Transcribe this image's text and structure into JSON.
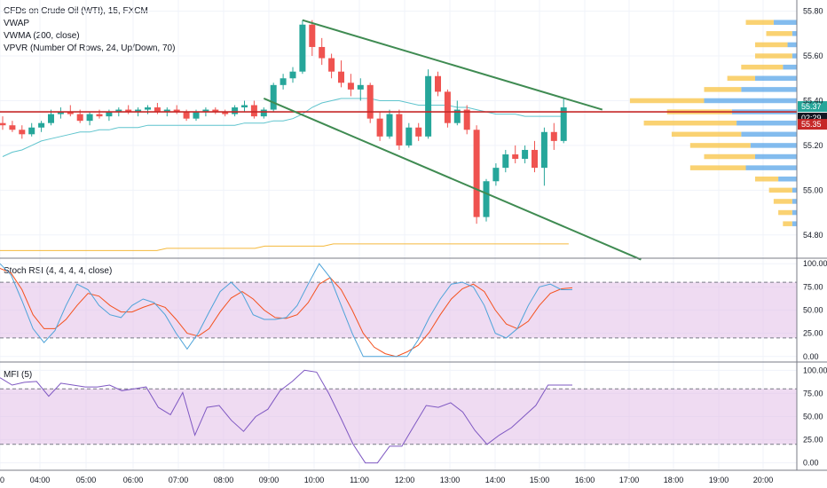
{
  "legend": {
    "main_title": "CFDs on Crude Oil (WTI), 15, FXCM",
    "vwap": "VWAP",
    "vwma": "VWMA (200, close)",
    "vpvr": "VPVR (Number Of Rows, 24, Up/Down, 70)",
    "stoch": "Stoch RSI (4, 4, 4, 4, close)",
    "mfi": "MFI (5)"
  },
  "colors": {
    "up": "#26a69a",
    "down": "#ef5350",
    "vwap": "#5fc4cd",
    "vwma": "#f5b93c",
    "trendline": "#3f8b52",
    "hline": "#c62828",
    "stoch_k": "#4ea3d9",
    "stoch_d": "#f4511e",
    "vp_up": "#5aa6e8",
    "vp_down": "#f9c74f"
  },
  "price_tags": {
    "last": "55.37",
    "countdown": "02:29",
    "level": "55.35"
  },
  "chart_data": [
    {
      "type": "candlestick",
      "name": "price",
      "x_labels": [
        "00",
        "04:00",
        "05:00",
        "06:00",
        "07:00",
        "08:00",
        "09:00",
        "10:00",
        "11:00",
        "12:00",
        "13:00",
        "14:00",
        "15:00",
        "16:00",
        "17:00",
        "18:00",
        "19:00",
        "20:00"
      ],
      "y_ticks": [
        54.8,
        55.0,
        55.2,
        55.4,
        55.6,
        55.8
      ],
      "y_tick_labels": [
        "54.80",
        "55.00",
        "55.20",
        "55.40",
        "55.60",
        "55.80"
      ],
      "ylim": [
        54.7,
        55.85
      ],
      "ohlc": [
        [
          55.3,
          55.33,
          55.27,
          55.29
        ],
        [
          55.29,
          55.31,
          55.26,
          55.27
        ],
        [
          55.27,
          55.29,
          55.23,
          55.25
        ],
        [
          55.25,
          55.3,
          55.24,
          55.28
        ],
        [
          55.28,
          55.31,
          55.26,
          55.3
        ],
        [
          55.3,
          55.36,
          55.29,
          55.34
        ],
        [
          55.34,
          55.37,
          55.32,
          55.35
        ],
        [
          55.35,
          55.38,
          55.33,
          55.34
        ],
        [
          55.34,
          55.36,
          55.3,
          55.31
        ],
        [
          55.31,
          55.35,
          55.29,
          55.34
        ],
        [
          55.34,
          55.36,
          55.32,
          55.33
        ],
        [
          55.33,
          55.36,
          55.31,
          55.35
        ],
        [
          55.35,
          55.37,
          55.33,
          55.36
        ],
        [
          55.36,
          55.38,
          55.34,
          55.35
        ],
        [
          55.35,
          55.37,
          55.33,
          55.36
        ],
        [
          55.36,
          55.38,
          55.34,
          55.37
        ],
        [
          55.37,
          55.39,
          55.34,
          55.35
        ],
        [
          55.35,
          55.37,
          55.33,
          55.36
        ],
        [
          55.36,
          55.38,
          55.34,
          55.35
        ],
        [
          55.35,
          55.36,
          55.31,
          55.32
        ],
        [
          55.32,
          55.36,
          55.31,
          55.35
        ],
        [
          55.35,
          55.37,
          55.33,
          55.36
        ],
        [
          55.36,
          55.37,
          55.34,
          55.35
        ],
        [
          55.35,
          55.36,
          55.33,
          55.34
        ],
        [
          55.34,
          55.38,
          55.33,
          55.37
        ],
        [
          55.37,
          55.4,
          55.35,
          55.38
        ],
        [
          55.38,
          55.4,
          55.32,
          55.33
        ],
        [
          55.33,
          55.37,
          55.32,
          55.36
        ],
        [
          55.36,
          55.48,
          55.35,
          55.47
        ],
        [
          55.47,
          55.52,
          55.45,
          55.5
        ],
        [
          55.5,
          55.55,
          55.48,
          55.53
        ],
        [
          55.53,
          55.76,
          55.52,
          55.74
        ],
        [
          55.74,
          55.76,
          55.6,
          55.64
        ],
        [
          55.64,
          55.68,
          55.56,
          55.59
        ],
        [
          55.59,
          55.61,
          55.5,
          55.53
        ],
        [
          55.53,
          55.58,
          55.46,
          55.48
        ],
        [
          55.48,
          55.52,
          55.42,
          55.45
        ],
        [
          55.45,
          55.5,
          55.4,
          55.47
        ],
        [
          55.47,
          55.48,
          55.3,
          55.32
        ],
        [
          55.32,
          55.35,
          55.22,
          55.24
        ],
        [
          55.24,
          55.36,
          55.23,
          55.34
        ],
        [
          55.34,
          55.36,
          55.18,
          55.2
        ],
        [
          55.2,
          55.3,
          55.19,
          55.28
        ],
        [
          55.28,
          55.3,
          55.22,
          55.24
        ],
        [
          55.24,
          55.54,
          55.23,
          55.51
        ],
        [
          55.51,
          55.53,
          55.42,
          55.44
        ],
        [
          55.44,
          55.45,
          55.28,
          55.3
        ],
        [
          55.3,
          55.4,
          55.29,
          55.36
        ],
        [
          55.36,
          55.38,
          55.25,
          55.27
        ],
        [
          55.27,
          55.29,
          54.85,
          54.88
        ],
        [
          54.88,
          55.05,
          54.86,
          55.04
        ],
        [
          55.04,
          55.12,
          55.02,
          55.1
        ],
        [
          55.1,
          55.18,
          55.08,
          55.16
        ],
        [
          55.16,
          55.2,
          55.12,
          55.14
        ],
        [
          55.14,
          55.2,
          55.12,
          55.18
        ],
        [
          55.18,
          55.22,
          55.08,
          55.1
        ],
        [
          55.1,
          55.28,
          55.02,
          55.26
        ],
        [
          55.26,
          55.3,
          55.18,
          55.22
        ],
        [
          55.22,
          55.41,
          55.21,
          55.37
        ]
      ],
      "vwap": [
        55.15,
        55.17,
        55.18,
        55.2,
        55.22,
        55.23,
        55.24,
        55.25,
        55.26,
        55.26,
        55.27,
        55.27,
        55.28,
        55.28,
        55.28,
        55.29,
        55.29,
        55.29,
        55.29,
        55.29,
        55.29,
        55.29,
        55.29,
        55.29,
        55.29,
        55.3,
        55.3,
        55.3,
        55.31,
        55.31,
        55.32,
        55.34,
        55.37,
        55.39,
        55.4,
        55.41,
        55.41,
        55.41,
        55.41,
        55.4,
        55.4,
        55.4,
        55.39,
        55.38,
        55.38,
        55.38,
        55.38,
        55.37,
        55.37,
        55.36,
        55.35,
        55.34,
        55.34,
        55.34,
        55.33,
        55.33,
        55.33,
        55.33,
        55.33
      ],
      "vwma": [
        54.73,
        54.73,
        54.73,
        54.73,
        54.73,
        54.73,
        54.73,
        54.73,
        54.73,
        54.73,
        54.73,
        54.73,
        54.73,
        54.73,
        54.73,
        54.73,
        54.73,
        54.74,
        54.74,
        54.74,
        54.74,
        54.74,
        54.74,
        54.74,
        54.74,
        54.74,
        54.74,
        54.75,
        54.75,
        54.75,
        54.75,
        54.75,
        54.75,
        54.75,
        54.76,
        54.76,
        54.76,
        54.76,
        54.76,
        54.76,
        54.76,
        54.76,
        54.76,
        54.76,
        54.76,
        54.76,
        54.76,
        54.76,
        54.76,
        54.76,
        54.76,
        54.76,
        54.76,
        54.76,
        54.76,
        54.76,
        54.76,
        54.76,
        54.76
      ],
      "trendlines": [
        {
          "points": [
            [
              31,
              55.76
            ],
            [
              62,
              55.36
            ]
          ]
        },
        {
          "points": [
            [
              27,
              55.41
            ],
            [
              66,
              54.69
            ]
          ]
        }
      ],
      "hlines": [
        55.35
      ],
      "volume_profile": [
        {
          "price": 55.75,
          "up": 0.3,
          "down": 0.25
        },
        {
          "price": 55.7,
          "up": 0.28,
          "down": 0.05
        },
        {
          "price": 55.65,
          "up": 0.35,
          "down": 0.1
        },
        {
          "price": 55.6,
          "up": 0.4,
          "down": 0.05
        },
        {
          "price": 55.55,
          "up": 0.45,
          "down": 0.15
        },
        {
          "price": 55.5,
          "up": 0.3,
          "down": 0.45
        },
        {
          "price": 55.45,
          "up": 0.4,
          "down": 0.6
        },
        {
          "price": 55.4,
          "up": 0.8,
          "down": 1.0
        },
        {
          "price": 55.35,
          "up": 0.7,
          "down": 0.7
        },
        {
          "price": 55.3,
          "up": 1.0,
          "down": 0.65
        },
        {
          "price": 55.25,
          "up": 0.75,
          "down": 0.6
        },
        {
          "price": 55.2,
          "up": 0.65,
          "down": 0.5
        },
        {
          "price": 55.15,
          "up": 0.55,
          "down": 0.45
        },
        {
          "price": 55.1,
          "up": 0.6,
          "down": 0.55
        },
        {
          "price": 55.05,
          "up": 0.25,
          "down": 0.2
        },
        {
          "price": 55.0,
          "up": 0.25,
          "down": 0.05
        },
        {
          "price": 54.95,
          "up": 0.2,
          "down": 0.05
        },
        {
          "price": 54.9,
          "up": 0.15,
          "down": 0.05
        },
        {
          "price": 54.85,
          "up": 0.1,
          "down": 0.05
        }
      ]
    },
    {
      "type": "line",
      "name": "stoch_rsi",
      "y_ticks": [
        0,
        25,
        50,
        75,
        100
      ],
      "y_tick_labels": [
        "0.00",
        "25.00",
        "50.00",
        "75.00",
        "100.00"
      ],
      "ylim": [
        -5,
        105
      ],
      "bands": [
        20,
        80
      ],
      "k": [
        100,
        88,
        60,
        30,
        15,
        28,
        55,
        78,
        72,
        55,
        45,
        42,
        55,
        62,
        58,
        45,
        25,
        8,
        25,
        48,
        70,
        80,
        68,
        45,
        40,
        40,
        42,
        55,
        78,
        100,
        85,
        55,
        25,
        0,
        0,
        0,
        0,
        0,
        18,
        42,
        62,
        78,
        80,
        75,
        55,
        25,
        20,
        30,
        55,
        75,
        78,
        72,
        72
      ],
      "d": [
        95,
        90,
        72,
        45,
        30,
        30,
        40,
        55,
        68,
        65,
        55,
        48,
        48,
        53,
        57,
        53,
        40,
        25,
        22,
        30,
        48,
        63,
        70,
        62,
        50,
        42,
        41,
        45,
        58,
        78,
        85,
        72,
        50,
        25,
        10,
        3,
        0,
        5,
        12,
        26,
        45,
        62,
        73,
        78,
        70,
        50,
        35,
        30,
        38,
        55,
        68,
        73,
        74
      ]
    },
    {
      "type": "line",
      "name": "mfi",
      "y_ticks": [
        0,
        25,
        50,
        75,
        100
      ],
      "y_tick_labels": [
        "0.00",
        "25.00",
        "50.00",
        "75.00",
        "100.00"
      ],
      "ylim": [
        -8,
        108
      ],
      "bands": [
        20,
        80
      ],
      "values": [
        92,
        84,
        87,
        88,
        72,
        86,
        84,
        82,
        82,
        84,
        78,
        80,
        82,
        60,
        52,
        76,
        30,
        60,
        62,
        46,
        34,
        50,
        58,
        78,
        88,
        100,
        98,
        75,
        48,
        20,
        0,
        0,
        18,
        18,
        40,
        62,
        60,
        65,
        55,
        35,
        20,
        30,
        38,
        50,
        62,
        84,
        84,
        84
      ]
    }
  ]
}
